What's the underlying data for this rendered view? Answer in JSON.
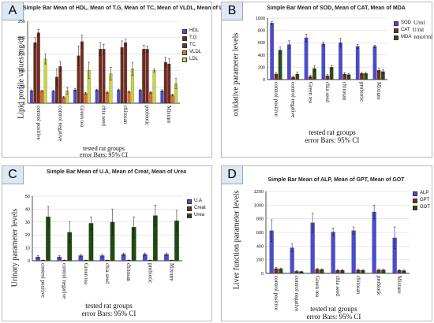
{
  "chart_data": [
    {
      "panel": "A",
      "type": "bar",
      "title": "Simple Bar Mean of HDL, Mean of T.G, Mean of TC, Mean of VLDL, Mean of LDL",
      "ylabel": "Lipid profile values mg/dl",
      "xlabel": "tested rat groups",
      "error_note": "error Bars: 95% CI",
      "ylim": [
        0,
        250
      ],
      "yticks": [
        0,
        50,
        100,
        150,
        200,
        250
      ],
      "categories": [
        "control positive",
        "control negative",
        "Green tea",
        "chia seed",
        "chitosan",
        "probiotic",
        "Mixture"
      ],
      "series": [
        {
          "name": "HDL",
          "color": "#4b4bd2",
          "values": [
            38,
            37,
            41,
            40,
            40,
            40,
            38
          ],
          "err": [
            3,
            3,
            3,
            3,
            3,
            3,
            3
          ]
        },
        {
          "name": "T.G",
          "color": "#6e2c1a",
          "values": [
            185,
            80,
            145,
            165,
            170,
            165,
            125
          ],
          "err": [
            15,
            25,
            30,
            20,
            20,
            12,
            15
          ]
        },
        {
          "name": "TC",
          "color": "#7a2a22",
          "values": [
            215,
            112,
            188,
            165,
            185,
            165,
            120
          ],
          "err": [
            10,
            15,
            20,
            15,
            10,
            10,
            15
          ]
        },
        {
          "name": "VLDL",
          "color": "#e86a2c",
          "values": [
            37,
            18,
            30,
            33,
            35,
            33,
            25
          ],
          "err": [
            3,
            3,
            3,
            3,
            3,
            3,
            3
          ]
        },
        {
          "name": "LDL",
          "color": "#c8d840",
          "values": [
            135,
            38,
            100,
            90,
            105,
            100,
            60
          ],
          "err": [
            15,
            10,
            25,
            20,
            20,
            5,
            15
          ]
        }
      ]
    },
    {
      "panel": "B",
      "type": "bar",
      "title": "Simple Bar Mean of SOD, Mean of CAT, Mean of MDA",
      "ylabel": "oxidative parameter levels",
      "xlabel": "tested rat groups",
      "error_note": "error Bars: 95% CI",
      "ylim": [
        0,
        1000
      ],
      "yticks": [
        0,
        200,
        400,
        600,
        800,
        1000
      ],
      "categories": [
        "control positive",
        "control negative",
        "Green tea",
        "chia seed",
        "chitosan",
        "probiotic",
        "Mixture"
      ],
      "series": [
        {
          "name": "SOD",
          "unit": "U/ml",
          "color": "#4b4bd2",
          "values": [
            920,
            570,
            680,
            580,
            600,
            540,
            540
          ],
          "err": [
            25,
            60,
            60,
            30,
            70,
            30,
            20
          ]
        },
        {
          "name": "CAT",
          "unit": "U/ml",
          "color": "#7a2a22",
          "values": [
            90,
            40,
            50,
            60,
            90,
            100,
            150
          ],
          "err": [
            20,
            20,
            20,
            20,
            20,
            20,
            30
          ]
        },
        {
          "name": "MDA",
          "unit": "nmol/ml",
          "color": "#2d4a1a",
          "values": [
            480,
            90,
            180,
            200,
            80,
            100,
            130
          ],
          "err": [
            50,
            30,
            40,
            30,
            20,
            20,
            30
          ]
        }
      ]
    },
    {
      "panel": "C",
      "type": "bar",
      "title": "Simple Bar Mean of U.A, Mean of Creat, Mean of Urea",
      "ylabel": "Urinary parameter levels",
      "xlabel": "tested rat groups",
      "error_note": "error Bars: 95% CI",
      "ylim": [
        0,
        50
      ],
      "yticks": [
        0,
        10,
        20,
        30,
        40,
        50
      ],
      "categories": [
        "control positive",
        "control negative",
        "Green tea",
        "chia seed",
        "chitosan",
        "probiotic",
        "Mixture"
      ],
      "series": [
        {
          "name": "U.A",
          "color": "#4b4bd2",
          "values": [
            3,
            3,
            4,
            4,
            5,
            5,
            5
          ],
          "err": [
            1,
            1,
            1,
            1,
            1,
            1,
            1
          ]
        },
        {
          "name": "Creat",
          "color": "#7a2a22",
          "values": [
            0.5,
            0.5,
            0.5,
            0.5,
            0.5,
            0.5,
            0.5
          ],
          "err": [
            0.1,
            0.1,
            0.1,
            0.1,
            0.1,
            0.1,
            0.1
          ]
        },
        {
          "name": "Urea",
          "color": "#1f4a12",
          "values": [
            34,
            22,
            29,
            30,
            26,
            35,
            31
          ],
          "err": [
            8,
            8,
            5,
            10,
            8,
            8,
            8
          ]
        }
      ]
    },
    {
      "panel": "D",
      "type": "bar",
      "title": "Simple Bar Mean of ALP, Mean of GPT, Mean of GOT",
      "ylabel": "Liver function parameter levels",
      "xlabel": "tested rat groups",
      "error_note": "error Bars: 95% CI",
      "ylim": [
        0,
        1200
      ],
      "yticks": [
        0,
        200,
        400,
        600,
        800,
        1000,
        1200
      ],
      "categories": [
        "control positive",
        "control negative",
        "Green tea",
        "chia seed",
        "chitosan",
        "probiotic",
        "Mixture"
      ],
      "series": [
        {
          "name": "ALP",
          "color": "#4b4bd2",
          "values": [
            625,
            375,
            740,
            605,
            625,
            900,
            520
          ],
          "err": [
            160,
            55,
            140,
            60,
            55,
            100,
            160
          ]
        },
        {
          "name": "GPT",
          "color": "#7a2a22",
          "values": [
            70,
            30,
            60,
            45,
            50,
            50,
            45
          ],
          "err": [
            15,
            8,
            12,
            10,
            10,
            10,
            10
          ]
        },
        {
          "name": "GOT",
          "color": "#2d4a1a",
          "values": [
            65,
            25,
            55,
            45,
            45,
            50,
            40
          ],
          "err": [
            15,
            8,
            12,
            10,
            10,
            10,
            10
          ]
        }
      ]
    }
  ]
}
